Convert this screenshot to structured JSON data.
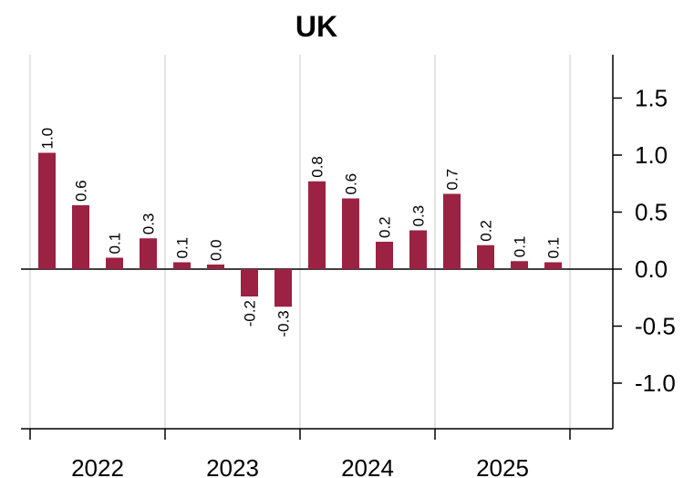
{
  "chart_data": {
    "type": "bar",
    "title": "UK",
    "categories": [
      null,
      null,
      null,
      null,
      null,
      null,
      null,
      null,
      null,
      null,
      null,
      null,
      null,
      null,
      null,
      null
    ],
    "groups": [
      "2022",
      "2023",
      "2024",
      "2025"
    ],
    "values": [
      1.02,
      0.56,
      0.1,
      0.27,
      0.06,
      0.04,
      -0.24,
      -0.33,
      0.77,
      0.62,
      0.24,
      0.34,
      0.66,
      0.21,
      0.07,
      0.06
    ],
    "value_labels": [
      "1.0",
      "0.6",
      "0.1",
      "0.3",
      "0.1",
      "0.0",
      "-0.2",
      "-0.3",
      "0.8",
      "0.6",
      "0.2",
      "0.3",
      "0.7",
      "0.2",
      "0.1",
      "0.1"
    ],
    "color": "#9b2242",
    "ylim": [
      -1.4,
      1.88
    ],
    "yticks": [
      {
        "value": -1,
        "label": "-1.0"
      },
      -0.5,
      {
        "value": 0,
        "label": "0.0"
      },
      0.5,
      {
        "value": 1,
        "label": "1.0"
      },
      1.5
    ],
    "grid": true
  }
}
